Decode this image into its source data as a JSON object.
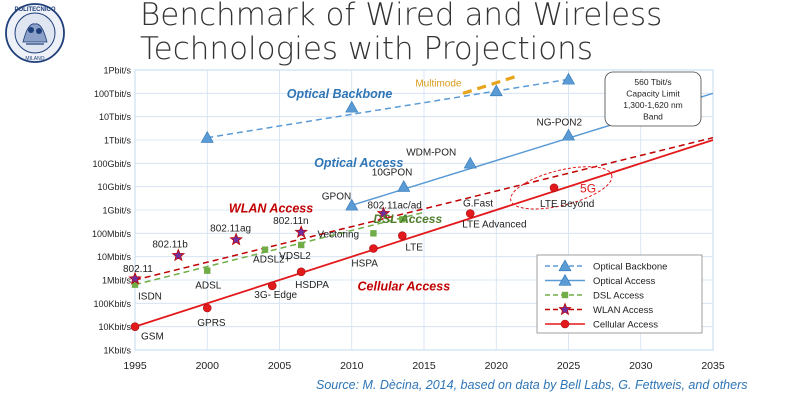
{
  "title": {
    "line1": "Benchmark of Wired and Wireless",
    "line2": "Technologies with Projections"
  },
  "logo": {
    "text_top": "POLITECNICO",
    "text_bottom": "MILANO",
    "icon": "politecnico-seal-icon"
  },
  "source": "Source: M. Dècina, 2014, based on data by Bell Labs, G. Fettweis, and others",
  "chart_data": {
    "type": "line",
    "title": "",
    "xlabel": "",
    "ylabel": "",
    "xlim": [
      1995,
      2035
    ],
    "x_ticks": [
      "1995",
      "2000",
      "2005",
      "2010",
      "2015",
      "2020",
      "2025",
      "2030",
      "2035"
    ],
    "y_scale": "log",
    "y_ticks": [
      "1Kbit/s",
      "10Kbit/s",
      "100Kbit/s",
      "1Mbit/s",
      "10Mbit/s",
      "100Mbit/s",
      "1Gbit/s",
      "10Gbit/s",
      "100Gbit/s",
      "1Tbit/s",
      "10Tbit/s",
      "100Tbit/s",
      "1Pbit/s"
    ],
    "ylim_log10_bits": [
      3,
      15
    ],
    "grid": true,
    "legend_position": "bottom-right",
    "series": [
      {
        "name": "Optical Backbone",
        "color": "#5B9BD5",
        "style": "dashed",
        "marker": "triangle",
        "points": [
          {
            "x": 2000,
            "y_log10": 12.1,
            "label": ""
          },
          {
            "x": 2010,
            "y_log10": 13.4,
            "label": ""
          },
          {
            "x": 2020,
            "y_log10": 14.1,
            "label": ""
          },
          {
            "x": 2025,
            "y_log10": 14.6,
            "label": ""
          }
        ],
        "trend": [
          [
            2000,
            12.1
          ],
          [
            2025,
            14.6
          ]
        ]
      },
      {
        "name": "Optical Access",
        "color": "#5B9BD5",
        "style": "solid",
        "marker": "triangle",
        "points": [
          {
            "x": 2010,
            "y_log10": 9.2,
            "label": "GPON"
          },
          {
            "x": 2013.6,
            "y_log10": 10.0,
            "label": "10GPON"
          },
          {
            "x": 2018.2,
            "y_log10": 11.0,
            "label": "WDM-PON"
          },
          {
            "x": 2025,
            "y_log10": 12.2,
            "label": "NG-PON2"
          }
        ],
        "trend": [
          [
            2010,
            9.2
          ],
          [
            2035,
            14.0
          ]
        ]
      },
      {
        "name": "DSL Access",
        "color": "#70AD47",
        "style": "dashed",
        "marker": "square",
        "points": [
          {
            "x": 1995,
            "y_log10": 5.8,
            "label": "ISDN"
          },
          {
            "x": 2000,
            "y_log10": 6.4,
            "label": "ADSL"
          },
          {
            "x": 2004,
            "y_log10": 7.3,
            "label": "ADSL2+"
          },
          {
            "x": 2006.5,
            "y_log10": 7.5,
            "label": "VDSL2"
          },
          {
            "x": 2011.5,
            "y_log10": 8.0,
            "label": "Vectoring"
          },
          {
            "x": 2013.5,
            "y_log10": 8.6,
            "label": ""
          }
        ],
        "trend": [
          [
            1995,
            5.8
          ],
          [
            2015,
            8.9
          ]
        ]
      },
      {
        "name": "WLAN Access",
        "color": "#C00000",
        "style": "dashed",
        "marker": "star",
        "points": [
          {
            "x": 1995,
            "y_log10": 6.05,
            "label": "802.11"
          },
          {
            "x": 1998,
            "y_log10": 7.05,
            "label": "802.11b"
          },
          {
            "x": 2002,
            "y_log10": 7.73,
            "label": "802.11ag"
          },
          {
            "x": 2006.5,
            "y_log10": 8.05,
            "label": "802.11n"
          },
          {
            "x": 2012.2,
            "y_log10": 8.85,
            "label": "802.11ac/ad"
          }
        ],
        "trend": [
          [
            1995,
            6.0
          ],
          [
            2035,
            12.1
          ]
        ]
      },
      {
        "name": "Cellular Access",
        "color": "#E31A1C",
        "style": "solid",
        "marker": "circle",
        "points": [
          {
            "x": 1995,
            "y_log10": 4.0,
            "label": "GSM"
          },
          {
            "x": 2000,
            "y_log10": 4.8,
            "label": "GPRS"
          },
          {
            "x": 2004.5,
            "y_log10": 5.75,
            "label": "3G- Edge"
          },
          {
            "x": 2006.5,
            "y_log10": 6.35,
            "label": "HSDPA"
          },
          {
            "x": 2011.5,
            "y_log10": 7.35,
            "label": "HSPA"
          },
          {
            "x": 2013.5,
            "y_log10": 7.9,
            "label": "LTE"
          },
          {
            "x": 2018.2,
            "y_log10": 8.85,
            "label": "LTE Advanced"
          },
          {
            "x": 2024,
            "y_log10": 9.95,
            "label": "LTE Beyond"
          }
        ],
        "trend": [
          [
            1995,
            4.0
          ],
          [
            2035,
            12.0
          ]
        ]
      }
    ],
    "extra_labels": [
      {
        "text": "G.Fast",
        "color": "#222222"
      },
      {
        "text": "5G",
        "color": "#E31A1C"
      }
    ],
    "annotations": [
      {
        "text": "Optical Backbone",
        "color": "#2E75B6",
        "style": "bold italic"
      },
      {
        "text": "Optical Access",
        "color": "#2E75B6",
        "style": "bold italic"
      },
      {
        "text": "WLAN Access",
        "color": "#C00000",
        "style": "bold italic"
      },
      {
        "text": "DSL Access",
        "color": "#4E7D2E",
        "style": "bold italic"
      },
      {
        "text": "Cellular Access",
        "color": "#C00000",
        "style": "bold italic"
      },
      {
        "text": "Multimode",
        "color": "#D89B1A",
        "style": "normal"
      }
    ],
    "multimode_line": {
      "color": "#E8A317",
      "from": [
        2017.7,
        14.0
      ],
      "to": [
        2021.5,
        14.75
      ]
    },
    "capacity_note": {
      "lines": [
        "560 Tbit/s",
        "Capacity Limit",
        "1,300-1,620 nm",
        "Band"
      ]
    },
    "ellipse_5g": {
      "cx": 2024.5,
      "cy_log10": 9.95,
      "rx_years": 3.6,
      "ry_log10": 0.75,
      "color": "#E31A1C"
    }
  }
}
